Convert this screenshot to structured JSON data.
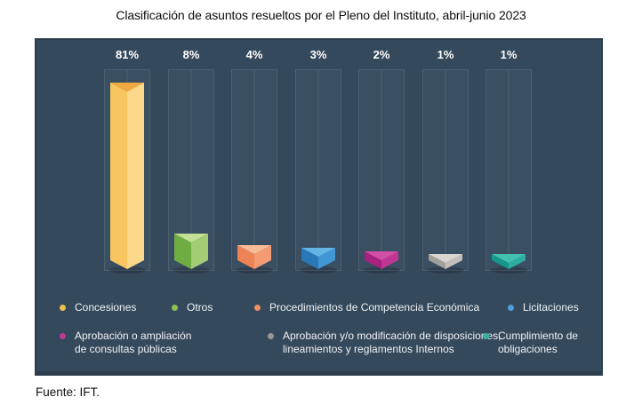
{
  "title": "Clasificación de asuntos resueltos por el Pleno del Instituto, abril-junio 2023",
  "source": "Fuente: IFT.",
  "chart_data": {
    "type": "bar",
    "title": "Clasificación de asuntos resueltos por el Pleno del Instituto, abril-junio 2023",
    "unit": "%",
    "ylim": [
      0,
      100
    ],
    "grid": false,
    "legend_position": "bottom",
    "categories": [
      "Concesiones",
      "Otros",
      "Procedimientos de Competencia Económica",
      "Licitaciones",
      "Aprobación o ampliación de consultas públicas",
      "Aprobación y/o modificación de disposiciones, lineamientos y reglamentos Internos",
      "Cumplimiento de obligaciones"
    ],
    "values": [
      81,
      8,
      4,
      3,
      2,
      1,
      1
    ],
    "bars": [
      {
        "label": "Concesiones",
        "value": 81,
        "value_label": "81%",
        "legend_lines": [
          "Concesiones"
        ],
        "colors": {
          "top": "#efab41",
          "left": "#f8c660",
          "right": "#fbd88a",
          "dot": "#efbf4e"
        }
      },
      {
        "label": "Otros",
        "value": 8,
        "value_label": "8%",
        "legend_lines": [
          "Otros"
        ],
        "colors": {
          "top": "#c3e095",
          "left": "#6fad42",
          "right": "#a2cd74",
          "dot": "#8cc153"
        }
      },
      {
        "label": "Procedimientos de Competencia Económica",
        "value": 4,
        "value_label": "4%",
        "legend_lines": [
          "Procedimientos de Competencia Económica"
        ],
        "colors": {
          "top": "#f8bb97",
          "left": "#ee8355",
          "right": "#f39b72",
          "dot": "#ee8f66"
        }
      },
      {
        "label": "Licitaciones",
        "value": 3,
        "value_label": "3%",
        "legend_lines": [
          "Licitaciones"
        ],
        "colors": {
          "top": "#64b5e6",
          "left": "#2878ba",
          "right": "#4097d4",
          "dot": "#4d9fdb"
        }
      },
      {
        "label": "Aprobación o ampliación de consultas públicas",
        "value": 2,
        "value_label": "2%",
        "legend_lines": [
          "Aprobación o ampliación",
          "de consultas públicas"
        ],
        "colors": {
          "top": "#d14fa6",
          "left": "#a82181",
          "right": "#c03695",
          "dot": "#c13a92"
        }
      },
      {
        "label": "Aprobación y/o modificación de disposiciones, lineamientos y reglamentos Internos",
        "value": 1,
        "value_label": "1%",
        "legend_lines": [
          "Aprobación y/o modificación de disposiciones,",
          "lineamientos y reglamentos Internos"
        ],
        "colors": {
          "top": "#d9d6d2",
          "left": "#a39f9b",
          "right": "#c2beba",
          "dot": "#9b9793"
        }
      },
      {
        "label": "Cumplimiento de obligaciones",
        "value": 1,
        "value_label": "1%",
        "legend_lines": [
          "Cumplimiento de",
          "obligaciones"
        ],
        "colors": {
          "top": "#43c1b0",
          "left": "#15988b",
          "right": "#2dada0",
          "dot": "#30b2a4"
        }
      }
    ]
  }
}
